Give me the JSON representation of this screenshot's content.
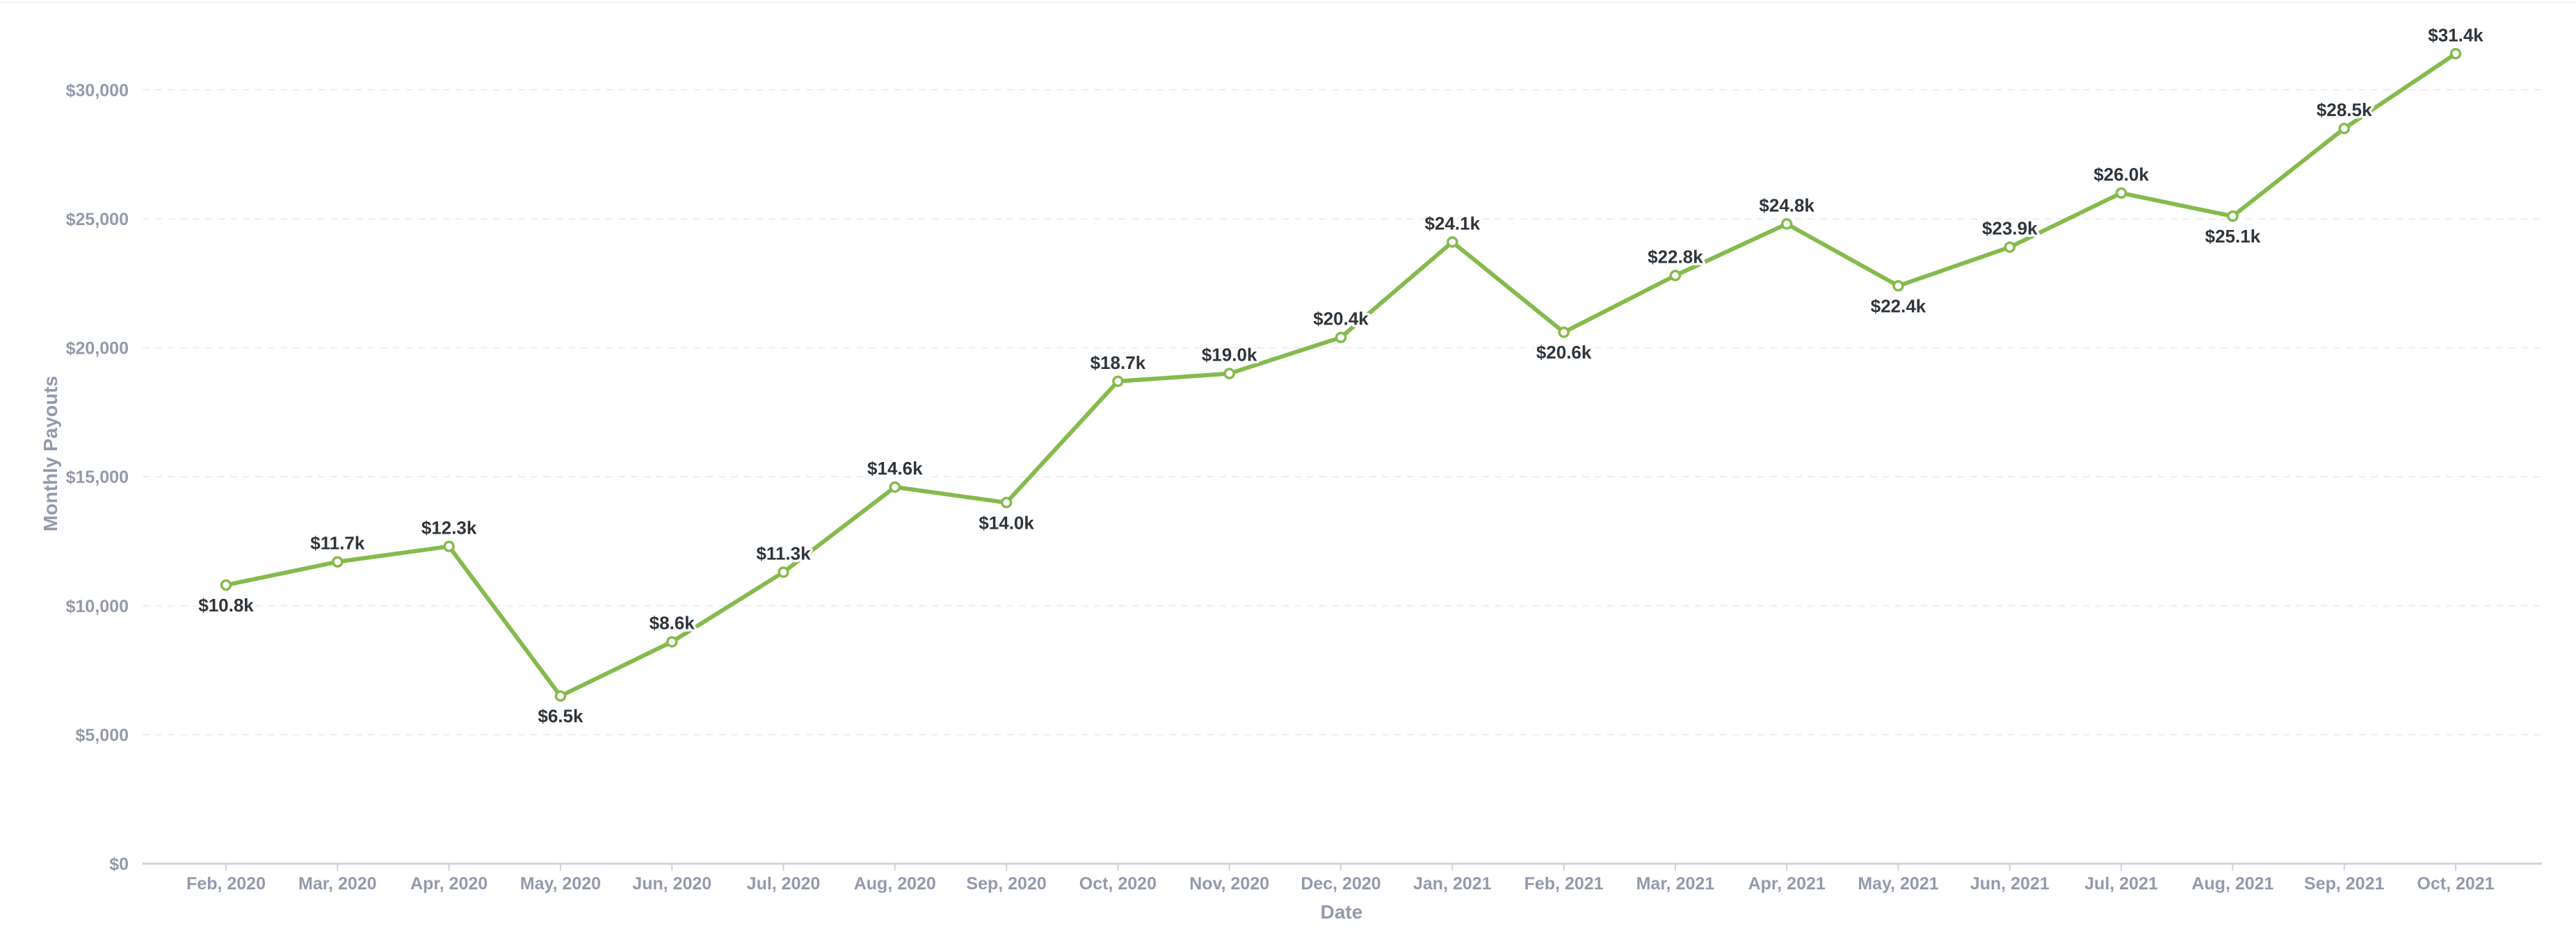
{
  "chart_data": {
    "type": "line",
    "title": "",
    "xlabel": "Date",
    "ylabel": "Monthly Payouts",
    "ylim": [
      0,
      32000
    ],
    "y_ticks": [
      0,
      5000,
      10000,
      15000,
      20000,
      25000,
      30000
    ],
    "y_tick_labels": [
      "$0",
      "$5,000",
      "$10,000",
      "$15,000",
      "$20,000",
      "$25,000",
      "$30,000"
    ],
    "grid": "horizontal dashed",
    "legend": "none",
    "categories": [
      "Feb, 2020",
      "Mar, 2020",
      "Apr, 2020",
      "May, 2020",
      "Jun, 2020",
      "Jul, 2020",
      "Aug, 2020",
      "Sep, 2020",
      "Oct, 2020",
      "Nov, 2020",
      "Dec, 2020",
      "Jan, 2021",
      "Feb, 2021",
      "Mar, 2021",
      "Apr, 2021",
      "May, 2021",
      "Jun, 2021",
      "Jul, 2021",
      "Aug, 2021",
      "Sep, 2021",
      "Oct, 2021"
    ],
    "series": [
      {
        "values": [
          10800,
          11700,
          12300,
          6500,
          8600,
          11300,
          14600,
          14000,
          18700,
          19000,
          20400,
          24100,
          20600,
          22800,
          24800,
          22400,
          23900,
          26000,
          25100,
          28500,
          31400
        ],
        "labels": [
          "$10.8k",
          "$11.7k",
          "$12.3k",
          "$6.5k",
          "$8.6k",
          "$11.3k",
          "$14.6k",
          "$14.0k",
          "$18.7k",
          "$19.0k",
          "$20.4k",
          "$24.1k",
          "$20.6k",
          "$22.8k",
          "$24.8k",
          "$22.4k",
          "$23.9k",
          "$26.0k",
          "$25.1k",
          "$28.5k",
          "$31.4k"
        ],
        "label_positions": [
          "below",
          "above",
          "above",
          "below",
          "above",
          "above",
          "above",
          "below",
          "above",
          "above",
          "above",
          "above",
          "below",
          "above",
          "above",
          "below",
          "above",
          "above",
          "below",
          "above",
          "above"
        ]
      }
    ],
    "colors": {
      "line": "#84bb4c",
      "point_fill": "#ffffff",
      "axis": "#cfd3da",
      "grid": "#ebeef2",
      "tick_text": "#949aab",
      "label_text": "#2e353b"
    }
  }
}
